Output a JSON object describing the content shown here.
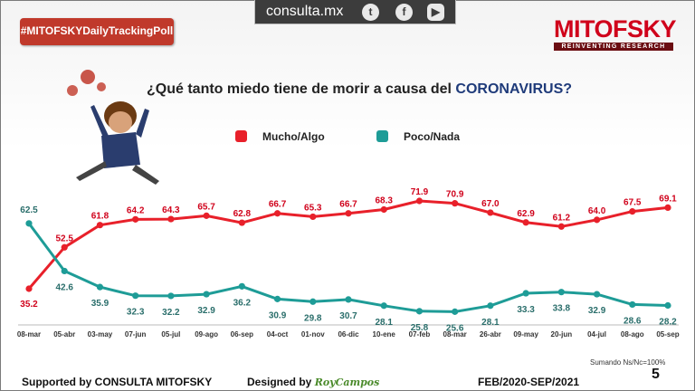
{
  "header": {
    "site": "consulta.mx",
    "social_icons": [
      "twitter-icon",
      "facebook-icon",
      "youtube-icon"
    ],
    "hashtag": "#MITOFSKYDailyTrackingPoll",
    "logo_name": "MITOFSKY",
    "logo_tagline": "REINVENTING RESEARCH"
  },
  "question": {
    "prefix": "¿Qué tanto miedo tiene de morir a causa del ",
    "emphasis": "CORONAVIRUS?"
  },
  "chart_data": {
    "type": "line",
    "title": "¿Qué tanto miedo tiene de morir a causa del CORONAVIRUS?",
    "categories": [
      "08-mar",
      "05-abr",
      "03-may",
      "07-jun",
      "05-jul",
      "09-ago",
      "06-sep",
      "04-oct",
      "01-nov",
      "06-dic",
      "10-ene",
      "07-feb",
      "08-mar",
      "26-abr",
      "09-may",
      "20-jun",
      "04-jul",
      "08-ago",
      "05-sep"
    ],
    "series": [
      {
        "name": "Mucho/Algo",
        "color": "#e8202a",
        "values": [
          35.2,
          52.5,
          61.8,
          64.2,
          64.3,
          65.7,
          62.8,
          66.7,
          65.3,
          66.7,
          68.3,
          71.9,
          70.9,
          67.0,
          62.9,
          61.2,
          64.0,
          67.5,
          69.1
        ]
      },
      {
        "name": "Poco/Nada",
        "color": "#1e9c97",
        "values": [
          62.5,
          42.6,
          35.9,
          32.3,
          32.2,
          32.9,
          36.2,
          30.9,
          29.8,
          30.7,
          28.1,
          25.8,
          25.6,
          28.1,
          33.3,
          33.8,
          32.9,
          28.6,
          28.2
        ]
      }
    ],
    "value_labels": {
      "Mucho/Algo": [
        "35.2",
        "52.5",
        "61.8",
        "64.2",
        "64.3",
        "65.7",
        "62.8",
        "66.7",
        "65.3",
        "66.7",
        "68.3",
        "71.9",
        "70.9",
        "67.0",
        "62.9",
        "61.2",
        "64.0",
        "67.5",
        "69.1"
      ],
      "Poco/Nada": [
        "62.5",
        "42.6",
        "35.9",
        "32.3",
        "32.2",
        "32.9",
        "36.2",
        "30.9",
        "29.8",
        "30.7",
        "28.1",
        "25.8",
        "25.6",
        "28.1",
        "33.3",
        "33.8",
        "32.9",
        "28.6",
        "28.2"
      ]
    },
    "legend": "top-center",
    "grid": false
  },
  "footer": {
    "supported": "Supported by  CONSULTA  MITOFSKY",
    "designed": "Designed by",
    "designer": "RoyCampos",
    "period": "FEB/2020-SEP/2021",
    "note": "Sumando Ns/Nc=100%",
    "page": "5"
  }
}
